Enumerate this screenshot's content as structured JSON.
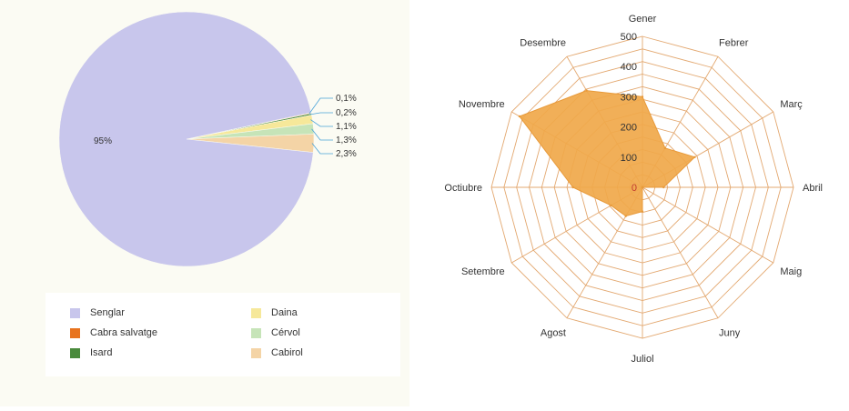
{
  "chart_data": [
    {
      "type": "pie",
      "title": "",
      "slices": [
        {
          "label": "Senglar",
          "value": 95,
          "label_text": "95%",
          "color": "#c8c6ec"
        },
        {
          "label": "Cabra salvatge",
          "value": 0.1,
          "label_text": "0,1%",
          "color": "#e8731e"
        },
        {
          "label": "Isard",
          "value": 0.2,
          "label_text": "0,2%",
          "color": "#4a8a3c"
        },
        {
          "label": "Daina",
          "value": 1.1,
          "label_text": "1,1%",
          "color": "#f6e89a"
        },
        {
          "label": "Cérvol",
          "value": 1.3,
          "label_text": "1,3%",
          "color": "#c6e4b8"
        },
        {
          "label": "Cabirol",
          "value": 2.3,
          "label_text": "2,3%",
          "color": "#f4d4a6"
        }
      ],
      "legend": [
        {
          "label": "Senglar",
          "color": "#c8c6ec"
        },
        {
          "label": "Cabra salvatge",
          "color": "#e8731e"
        },
        {
          "label": "Isard",
          "color": "#4a8a3c"
        },
        {
          "label": "Daina",
          "color": "#f6e89a"
        },
        {
          "label": "Cérvol",
          "color": "#c6e4b8"
        },
        {
          "label": "Cabirol",
          "color": "#f4d4a6"
        }
      ],
      "legend_placement": "bottom"
    },
    {
      "type": "radar",
      "title": "",
      "categories": [
        "Gener",
        "Febrer",
        "Març",
        "Abril",
        "Maig",
        "Juny",
        "Juliol",
        "Agost",
        "Setembre",
        "Octiubre",
        "Novembre",
        "Desembre"
      ],
      "series": [
        {
          "values": [
            300,
            150,
            200,
            70,
            0,
            0,
            80,
            110,
            120,
            230,
            470,
            370
          ],
          "color": "#f0a84a"
        }
      ],
      "radial_ticks": [
        0,
        100,
        200,
        300,
        400,
        500
      ],
      "rmax": 500,
      "grid": true
    }
  ]
}
